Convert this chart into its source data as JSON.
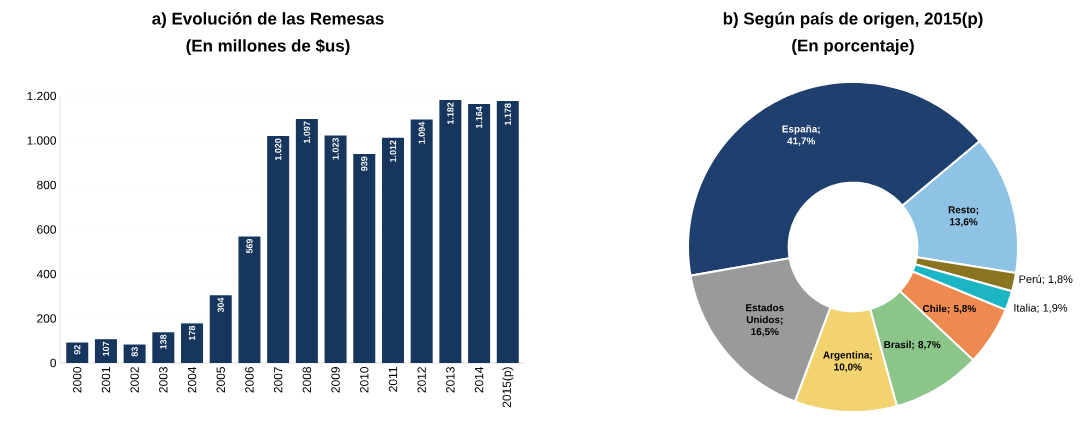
{
  "chart_data": [
    {
      "type": "bar",
      "title": "a) Evolución de las Remesas",
      "subtitle": "(En millones de $us)",
      "categories": [
        "2000",
        "2001",
        "2002",
        "2003",
        "2004",
        "2005",
        "2006",
        "2007",
        "2008",
        "2009",
        "2010",
        "2011",
        "2012",
        "2013",
        "2014",
        "2015(p)"
      ],
      "values": [
        92,
        107,
        83,
        138,
        178,
        304,
        569,
        1020,
        1097,
        1023,
        939,
        1012,
        1094,
        1182,
        1164,
        1178
      ],
      "value_labels": [
        "92",
        "107",
        "83",
        "138",
        "178",
        "304",
        "569",
        "1.020",
        "1.097",
        "1.023",
        "939",
        "1.012",
        "1.094",
        "1.182",
        "1.164",
        "1.178"
      ],
      "color": "#17365d",
      "ylim": [
        0,
        1200
      ],
      "yticks": [
        0,
        200,
        400,
        600,
        800,
        {
          "value": 1000,
          "label": "1.000"
        },
        {
          "value": 1200,
          "label": "1.200"
        }
      ],
      "grid": "y"
    },
    {
      "type": "donut",
      "title": "b) Según país de origen, 2015(p)",
      "subtitle": "(En porcentaje)",
      "categories": [
        "España",
        "Resto",
        "Perú",
        "Italia",
        "Chile",
        "Brasil",
        "Argentina",
        "Estados Unidos"
      ],
      "values": [
        41.7,
        13.6,
        1.8,
        1.9,
        5.8,
        8.7,
        10.0,
        16.5
      ],
      "value_labels": [
        "; 41,7%",
        "; 13,6%",
        "; 1,8%",
        "; 1,9%",
        "; 5,8%",
        "; 8,7%",
        "; 10,0%",
        "; 16,5%"
      ],
      "colors": [
        "#1f3f6e",
        "#8ec3e6",
        "#8a7420",
        "#1bb5c4",
        "#ee8a4f",
        "#8cc58a",
        "#f3d36f",
        "#9a9a9a"
      ]
    }
  ]
}
